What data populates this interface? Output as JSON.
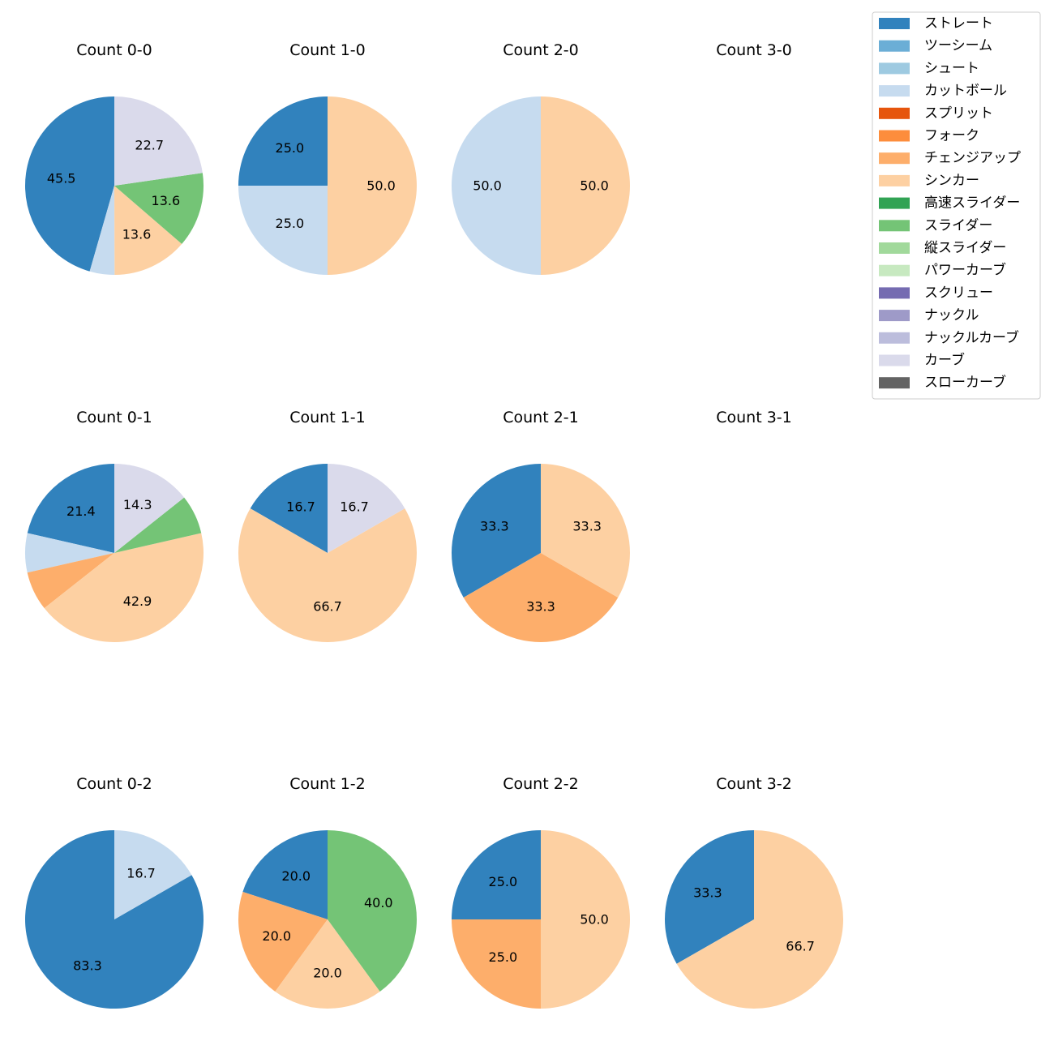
{
  "chart_data": {
    "type": "pie",
    "legend_position": "top-right",
    "categories": [
      "ストレート",
      "ツーシーム",
      "シュート",
      "カットボール",
      "スプリット",
      "フォーク",
      "チェンジアップ",
      "シンカー",
      "高速スライダー",
      "スライダー",
      "縦スライダー",
      "パワーカーブ",
      "スクリュー",
      "ナックル",
      "ナックルカーブ",
      "カーブ",
      "スローカーブ"
    ],
    "colors": [
      "#3182bd",
      "#6baed6",
      "#9ecae1",
      "#c6dbef",
      "#e6550d",
      "#fd8d3c",
      "#fdae6b",
      "#fdd0a2",
      "#31a354",
      "#74c476",
      "#a1d99b",
      "#c7e9c0",
      "#756bb1",
      "#9e9ac8",
      "#bcbddc",
      "#dadaeb",
      "#636363"
    ],
    "charts": [
      {
        "title": "Count 0-0",
        "slices": [
          {
            "category": "ストレート",
            "value": 45.5,
            "label": "45.5"
          },
          {
            "category": "カットボール",
            "value": 4.5,
            "label": ""
          },
          {
            "category": "シンカー",
            "value": 13.6,
            "label": "13.6"
          },
          {
            "category": "スライダー",
            "value": 13.6,
            "label": "13.6"
          },
          {
            "category": "カーブ",
            "value": 22.7,
            "label": "22.7"
          }
        ]
      },
      {
        "title": "Count 1-0",
        "slices": [
          {
            "category": "ストレート",
            "value": 25.0,
            "label": "25.0"
          },
          {
            "category": "カットボール",
            "value": 25.0,
            "label": "25.0"
          },
          {
            "category": "シンカー",
            "value": 50.0,
            "label": "50.0"
          }
        ]
      },
      {
        "title": "Count 2-0",
        "slices": [
          {
            "category": "カットボール",
            "value": 50.0,
            "label": "50.0"
          },
          {
            "category": "シンカー",
            "value": 50.0,
            "label": "50.0"
          }
        ]
      },
      {
        "title": "Count 3-0",
        "slices": []
      },
      {
        "title": "Count 0-1",
        "slices": [
          {
            "category": "ストレート",
            "value": 21.4,
            "label": "21.4"
          },
          {
            "category": "カットボール",
            "value": 7.1,
            "label": ""
          },
          {
            "category": "チェンジアップ",
            "value": 7.1,
            "label": ""
          },
          {
            "category": "シンカー",
            "value": 42.9,
            "label": "42.9"
          },
          {
            "category": "スライダー",
            "value": 7.1,
            "label": ""
          },
          {
            "category": "カーブ",
            "value": 14.3,
            "label": "14.3"
          }
        ]
      },
      {
        "title": "Count 1-1",
        "slices": [
          {
            "category": "ストレート",
            "value": 16.7,
            "label": "16.7"
          },
          {
            "category": "シンカー",
            "value": 66.7,
            "label": "66.7"
          },
          {
            "category": "カーブ",
            "value": 16.7,
            "label": "16.7"
          }
        ]
      },
      {
        "title": "Count 2-1",
        "slices": [
          {
            "category": "ストレート",
            "value": 33.3,
            "label": "33.3"
          },
          {
            "category": "チェンジアップ",
            "value": 33.3,
            "label": "33.3"
          },
          {
            "category": "シンカー",
            "value": 33.3,
            "label": "33.3"
          }
        ]
      },
      {
        "title": "Count 3-1",
        "slices": []
      },
      {
        "title": "Count 0-2",
        "slices": [
          {
            "category": "ストレート",
            "value": 83.3,
            "label": "83.3"
          },
          {
            "category": "カットボール",
            "value": 16.7,
            "label": "16.7"
          }
        ]
      },
      {
        "title": "Count 1-2",
        "slices": [
          {
            "category": "ストレート",
            "value": 20.0,
            "label": "20.0"
          },
          {
            "category": "チェンジアップ",
            "value": 20.0,
            "label": "20.0"
          },
          {
            "category": "シンカー",
            "value": 20.0,
            "label": "20.0"
          },
          {
            "category": "スライダー",
            "value": 40.0,
            "label": "40.0"
          }
        ]
      },
      {
        "title": "Count 2-2",
        "slices": [
          {
            "category": "ストレート",
            "value": 25.0,
            "label": "25.0"
          },
          {
            "category": "チェンジアップ",
            "value": 25.0,
            "label": "25.0"
          },
          {
            "category": "シンカー",
            "value": 50.0,
            "label": "50.0"
          }
        ]
      },
      {
        "title": "Count 3-2",
        "slices": [
          {
            "category": "ストレート",
            "value": 33.3,
            "label": "33.3"
          },
          {
            "category": "シンカー",
            "value": 66.7,
            "label": "66.7"
          }
        ]
      }
    ]
  }
}
